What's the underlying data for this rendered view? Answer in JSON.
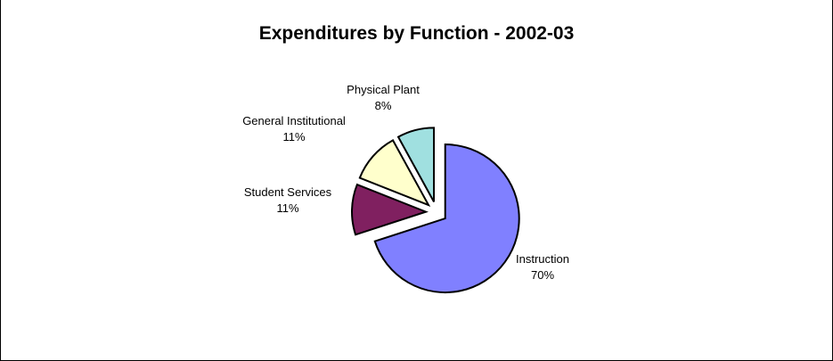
{
  "chart_data": {
    "type": "pie",
    "title": "Expenditures by Function - 2002-03",
    "slices": [
      {
        "label": "Instruction",
        "percent_label": "70%",
        "value": 70,
        "color": "#8080FF"
      },
      {
        "label": "Student Services",
        "percent_label": "11%",
        "value": 11,
        "color": "#802060"
      },
      {
        "label": "General Institutional",
        "percent_label": "11%",
        "value": 11,
        "color": "#FFFFCC"
      },
      {
        "label": "Physical Plant",
        "percent_label": "8%",
        "value": 8,
        "color": "#A0E0E0"
      }
    ],
    "exploded": true,
    "legend": "none"
  }
}
